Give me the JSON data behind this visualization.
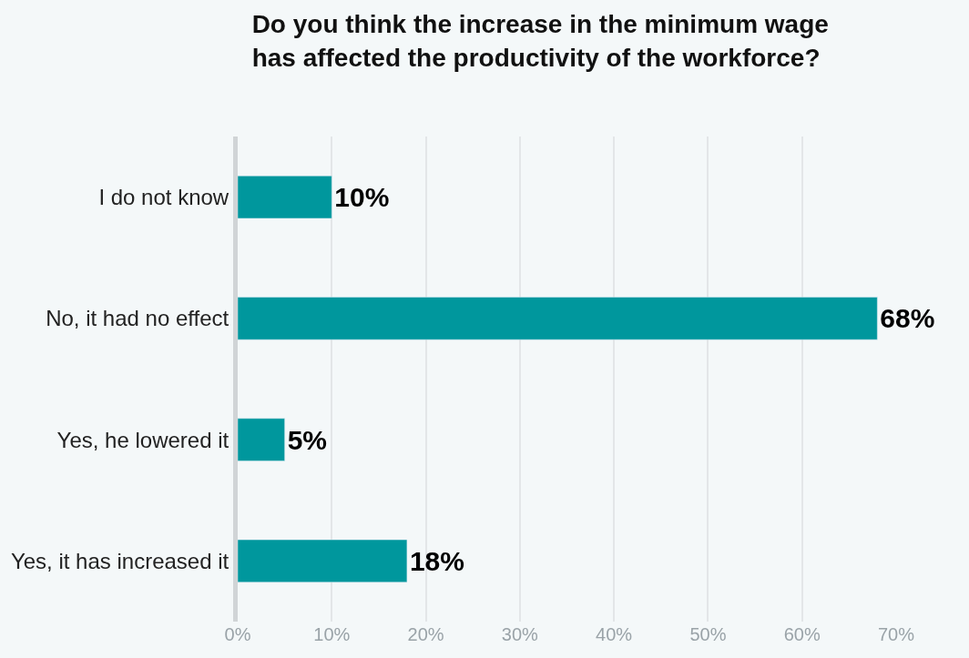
{
  "chart_data": {
    "type": "bar",
    "orientation": "horizontal",
    "title": "Do you think the increase in the minimum wage\nhas affected the productivity of the workforce?",
    "categories": [
      "I do not know",
      "No, it had no effect",
      "Yes, he lowered it",
      "Yes, it has increased it"
    ],
    "values": [
      10,
      68,
      5,
      18
    ],
    "value_labels": [
      "10%",
      "68%",
      "5%",
      "18%"
    ],
    "color": "#00979d",
    "xlim": [
      0,
      70
    ],
    "xticks": [
      {
        "value": 0,
        "label": "0%"
      },
      {
        "value": 10,
        "label": "10%"
      },
      {
        "value": 20,
        "label": "20%"
      },
      {
        "value": 30,
        "label": "30%"
      },
      {
        "value": 40,
        "label": "40%"
      },
      {
        "value": 50,
        "label": "50%"
      },
      {
        "value": 60,
        "label": "60%"
      },
      {
        "value": 70,
        "label": "70%"
      }
    ],
    "grid": "x"
  }
}
